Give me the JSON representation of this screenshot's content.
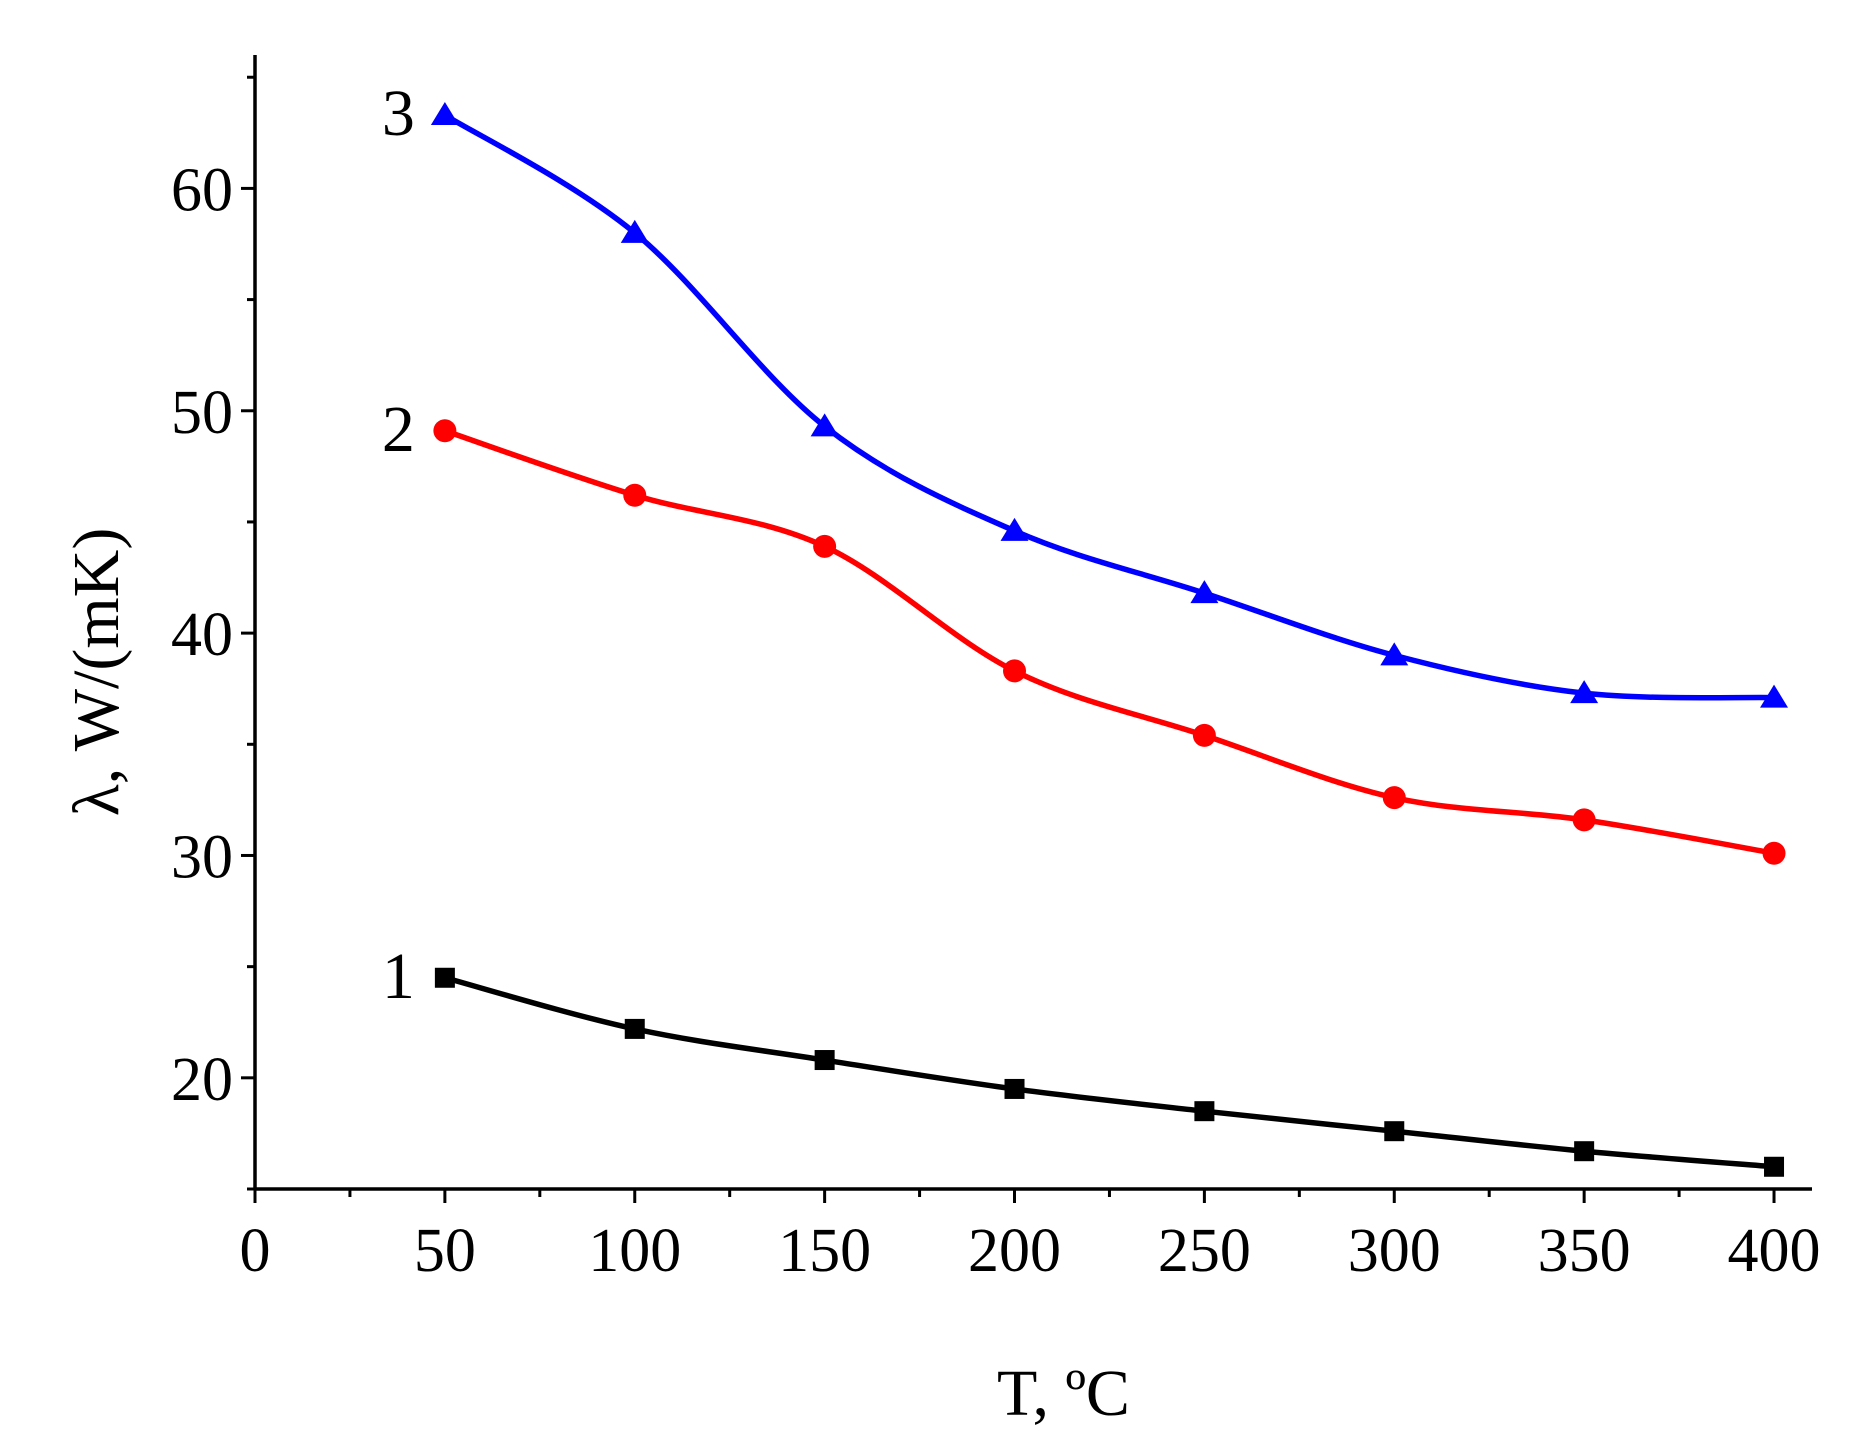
{
  "chart_data": {
    "type": "line",
    "title": "",
    "xlabel": "T, ºC",
    "ylabel": "λ,  W/(mK)",
    "xlim": [
      0,
      410
    ],
    "ylim": [
      15,
      66
    ],
    "xticks": [
      0,
      50,
      100,
      150,
      200,
      250,
      300,
      350,
      400
    ],
    "xtick_labels": [
      "0",
      "50",
      "100",
      "150",
      "200",
      "250",
      "300",
      "350",
      "400"
    ],
    "yticks": [
      20,
      30,
      40,
      50,
      60
    ],
    "ytick_labels": [
      "20",
      "30",
      "40",
      "50",
      "60"
    ],
    "grid": false,
    "x": [
      50,
      100,
      150,
      200,
      250,
      300,
      350,
      400
    ],
    "series": [
      {
        "name": "1",
        "label": "1",
        "color": "#000000",
        "marker": "square",
        "values": [
          24.5,
          22.2,
          20.8,
          19.5,
          18.5,
          17.6,
          16.7,
          16.0
        ]
      },
      {
        "name": "2",
        "label": "2",
        "color": "#ff0000",
        "marker": "circle",
        "values": [
          49.1,
          46.2,
          43.9,
          38.3,
          35.4,
          32.6,
          31.6,
          30.1
        ]
      },
      {
        "name": "3",
        "label": "3",
        "color": "#0000ff",
        "marker": "triangle",
        "values": [
          63.3,
          58.0,
          49.3,
          44.6,
          41.8,
          39.0,
          37.3,
          37.1
        ]
      }
    ]
  }
}
